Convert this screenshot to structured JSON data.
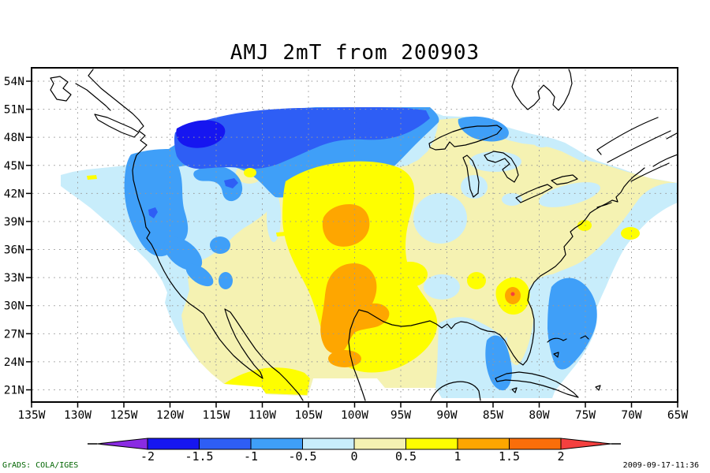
{
  "title": "AMJ 2mT from 200903",
  "y_axis": {
    "labels": [
      "54N",
      "51N",
      "48N",
      "45N",
      "42N",
      "39N",
      "36N",
      "33N",
      "30N",
      "27N",
      "24N",
      "21N"
    ]
  },
  "x_axis": {
    "labels": [
      "135W",
      "130W",
      "125W",
      "120W",
      "115W",
      "110W",
      "105W",
      "100W",
      "95W",
      "90W",
      "85W",
      "80W",
      "75W",
      "70W",
      "65W"
    ]
  },
  "palette": {
    "under_-2": "#8A2BE2",
    "-2_-1.5": "#1616F0",
    "-1.5_-1": "#2E5EF5",
    "-1_-0.5": "#3F9FF8",
    "-0.5_0": "#C8EDFB",
    "0_0.5": "#F5F2B2",
    "0.5_1": "#FEFE00",
    "1_1.5": "#FEA600",
    "1.5_2": "#FA6E0A",
    "over_2": "#F4403F"
  },
  "colorbar": {
    "tick_labels": [
      "-2",
      "-1.5",
      "-1",
      "-0.5",
      "0",
      "0.5",
      "1",
      "1.5",
      "2"
    ],
    "box_keys": [
      "-2_-1.5",
      "-1.5_-1",
      "-1_-0.5",
      "-0.5_0",
      "0_0.5",
      "0.5_1",
      "1_1.5",
      "1.5_2"
    ],
    "arrow_left_key": "under_-2",
    "arrow_right_key": "over_2"
  },
  "footer": {
    "left": "GrADS: COLA/IGES",
    "right": "2009-09-17-11:36",
    "credit_color": "#006400"
  },
  "chart_data": {
    "type": "heatmap",
    "subtype": "filled-contour-map",
    "title": "AMJ 2mT from 200903",
    "xlabel": "longitude (135W to 65W, ticks every 5 degrees)",
    "ylabel": "latitude (21N to 54N, ticks every 3 degrees)",
    "contour_levels": [
      -2,
      -1.5,
      -1,
      -0.5,
      0,
      0.5,
      1,
      1.5,
      2
    ],
    "grid": true,
    "legend_position": "bottom horizontal colorbar with under/over arrow caps",
    "features": [
      {
        "region": "northern band 128W-92W near 48N-52N",
        "value_range": "-1 to -1.5"
      },
      {
        "region": "core 117W-108W near 50N-51N",
        "value_range": "-1.5 to -2"
      },
      {
        "region": "Pacific coast and Great Basin 125W-113W, 33N-45N",
        "value_range": "-0.5 to -1"
      },
      {
        "region": "offshore Pacific and western interior surroundings",
        "value_range": "-0.5 to 0"
      },
      {
        "region": "central Plains 108W-96W, 23N-41N",
        "value_range": "+0.5 to +1"
      },
      {
        "region": "warm cores near 101W/38-40N, 100W/27-33N, 101W/24N",
        "value_range": "+1 to +1.5"
      },
      {
        "region": "Southeast spot near 85W/33N (Georgia-Alabama)",
        "value_range": "+1 to +1.5 with tiny point over +2"
      },
      {
        "region": "Gulf of Mexico pool 82W/26-30N and Atlantic pool 77W/25-33N",
        "value_range": "-0.5 to -1"
      },
      {
        "region": "Midwest pocket near 90W/36-40N and lower Mississippi 92W/31N",
        "value_range": "-0.5 to 0"
      },
      {
        "region": "most of eastern US and Midwest",
        "value_range": "0 to +0.5"
      },
      {
        "region": "Idaho-Montana spot 112W/44N, NE offshore spots 72W/38N and 70W/39N",
        "value_range": "+0.5 to +1"
      },
      {
        "region": "no data (white) outside stepped data boundary: NE Pacific, NE Canada/Atlantic corners, far SW and SE corners",
        "value_range": "undefined"
      }
    ]
  }
}
